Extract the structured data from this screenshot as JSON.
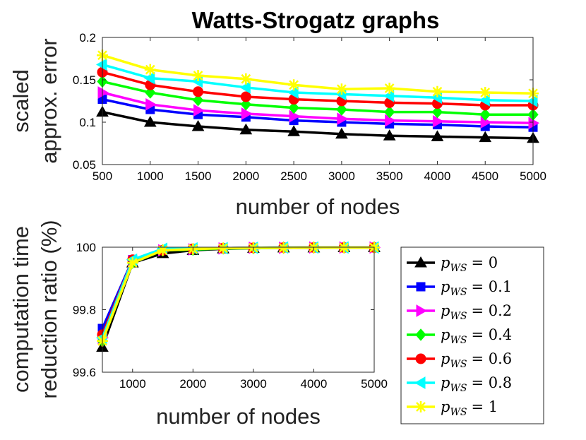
{
  "chart_data": [
    {
      "type": "line",
      "title": "Watts-Strogatz graphs",
      "xlabel": "number of nodes",
      "ylabel": [
        "scaled",
        "approx. error"
      ],
      "xlim": [
        500,
        5000
      ],
      "ylim": [
        0.05,
        0.2
      ],
      "xticks": [
        500,
        1000,
        1500,
        2000,
        2500,
        3000,
        3500,
        4000,
        4500,
        5000
      ],
      "xtick_labels": [
        "500",
        "1000",
        "1500",
        "2000",
        "2500",
        "3000",
        "3500",
        "4000",
        "4500",
        "5000"
      ],
      "yticks": [
        0.05,
        0.1,
        0.15,
        0.2
      ],
      "ytick_labels": [
        "0.05",
        "0.1",
        "0.15",
        "0.2"
      ],
      "x": [
        500,
        1000,
        1500,
        2000,
        2500,
        3000,
        3500,
        4000,
        4500,
        5000
      ],
      "series": [
        {
          "name": "p_WS = 0",
          "color": "#000000",
          "marker": "triangle-up",
          "values": [
            0.112,
            0.1,
            0.095,
            0.091,
            0.089,
            0.086,
            0.084,
            0.083,
            0.082,
            0.081
          ]
        },
        {
          "name": "p_WS = 0.1",
          "color": "#0000ff",
          "marker": "square",
          "values": [
            0.127,
            0.115,
            0.109,
            0.106,
            0.102,
            0.1,
            0.098,
            0.097,
            0.095,
            0.094
          ]
        },
        {
          "name": "p_WS = 0.2",
          "color": "#ff00ff",
          "marker": "triangle-right",
          "values": [
            0.135,
            0.121,
            0.114,
            0.11,
            0.107,
            0.104,
            0.102,
            0.101,
            0.1,
            0.099
          ]
        },
        {
          "name": "p_WS = 0.4",
          "color": "#00ff00",
          "marker": "diamond",
          "values": [
            0.148,
            0.135,
            0.126,
            0.121,
            0.117,
            0.115,
            0.112,
            0.112,
            0.109,
            0.109
          ]
        },
        {
          "name": "p_WS = 0.6",
          "color": "#ff0000",
          "marker": "circle",
          "values": [
            0.159,
            0.144,
            0.136,
            0.13,
            0.127,
            0.125,
            0.123,
            0.122,
            0.12,
            0.12
          ]
        },
        {
          "name": "p_WS = 0.8",
          "color": "#00ffff",
          "marker": "triangle-left",
          "values": [
            0.168,
            0.152,
            0.148,
            0.141,
            0.135,
            0.133,
            0.131,
            0.129,
            0.126,
            0.125
          ]
        },
        {
          "name": "p_WS = 1",
          "color": "#ffff00",
          "marker": "x-star",
          "values": [
            0.179,
            0.162,
            0.155,
            0.151,
            0.144,
            0.139,
            0.14,
            0.136,
            0.135,
            0.134
          ]
        }
      ]
    },
    {
      "type": "line",
      "title": "",
      "xlabel": "number of nodes",
      "ylabel": [
        "computation time",
        "reduction ratio (%)"
      ],
      "xlim": [
        500,
        5000
      ],
      "ylim": [
        99.6,
        100
      ],
      "xticks": [
        1000,
        2000,
        3000,
        4000,
        5000
      ],
      "xtick_labels": [
        "1000",
        "2000",
        "3000",
        "4000",
        "5000"
      ],
      "yticks": [
        99.6,
        99.8,
        100
      ],
      "ytick_labels": [
        "99.6",
        "99.8",
        "100"
      ],
      "x": [
        500,
        1000,
        1500,
        2000,
        2500,
        3000,
        3500,
        4000,
        4500,
        5000
      ],
      "series": [
        {
          "name": "p_WS = 0",
          "color": "#000000",
          "marker": "triangle-up",
          "values": [
            99.68,
            99.95,
            99.98,
            99.99,
            99.995,
            99.997,
            99.998,
            99.998,
            99.999,
            99.999
          ]
        },
        {
          "name": "p_WS = 0.1",
          "color": "#0000ff",
          "marker": "square",
          "values": [
            99.74,
            99.96,
            99.99,
            99.995,
            99.997,
            99.998,
            99.998,
            99.999,
            99.999,
            99.999
          ]
        },
        {
          "name": "p_WS = 0.2",
          "color": "#ff00ff",
          "marker": "triangle-right",
          "values": [
            99.71,
            99.955,
            99.99,
            99.993,
            99.996,
            99.998,
            99.998,
            99.999,
            99.999,
            99.999
          ]
        },
        {
          "name": "p_WS = 0.4",
          "color": "#00ff00",
          "marker": "diamond",
          "values": [
            99.7,
            99.95,
            99.99,
            99.992,
            99.996,
            99.997,
            99.998,
            99.999,
            99.999,
            99.999
          ]
        },
        {
          "name": "p_WS = 0.6",
          "color": "#ff0000",
          "marker": "circle",
          "values": [
            99.72,
            99.96,
            99.99,
            99.995,
            99.997,
            99.998,
            99.999,
            99.999,
            99.999,
            99.999
          ]
        },
        {
          "name": "p_WS = 0.8",
          "color": "#00ffff",
          "marker": "triangle-left",
          "values": [
            99.71,
            99.96,
            99.995,
            99.996,
            99.997,
            99.998,
            99.999,
            99.999,
            99.999,
            99.999
          ]
        },
        {
          "name": "p_WS = 1",
          "color": "#ffff00",
          "marker": "x-star",
          "values": [
            99.7,
            99.95,
            99.99,
            99.994,
            99.997,
            99.998,
            99.998,
            99.999,
            99.999,
            99.999
          ]
        }
      ]
    }
  ],
  "legend": {
    "entries": [
      {
        "symbol": "p",
        "subscript": "WS",
        "value": "= 0",
        "color": "#000000",
        "marker": "triangle-up"
      },
      {
        "symbol": "p",
        "subscript": "WS",
        "value": "= 0.1",
        "color": "#0000ff",
        "marker": "square"
      },
      {
        "symbol": "p",
        "subscript": "WS",
        "value": "= 0.2",
        "color": "#ff00ff",
        "marker": "triangle-right"
      },
      {
        "symbol": "p",
        "subscript": "WS",
        "value": "= 0.4",
        "color": "#00ff00",
        "marker": "diamond"
      },
      {
        "symbol": "p",
        "subscript": "WS",
        "value": "= 0.6",
        "color": "#ff0000",
        "marker": "circle"
      },
      {
        "symbol": "p",
        "subscript": "WS",
        "value": "= 0.8",
        "color": "#00ffff",
        "marker": "triangle-left"
      },
      {
        "symbol": "p",
        "subscript": "WS",
        "value": "= 1",
        "color": "#ffff00",
        "marker": "x-star"
      }
    ]
  }
}
